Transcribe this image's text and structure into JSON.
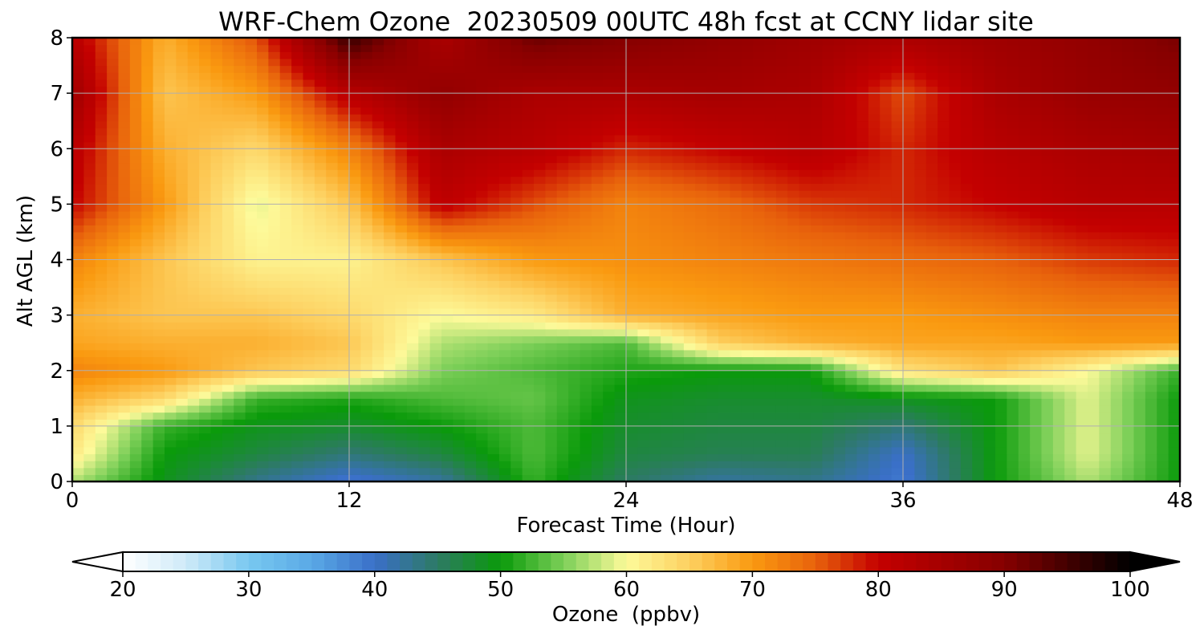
{
  "title": "WRF-Chem Ozone  20230509 00UTC 48h fcst at CCNY lidar site",
  "colors": {
    "stops": [
      [
        20,
        "#ffffff"
      ],
      [
        25,
        "#cfeaf8"
      ],
      [
        30,
        "#78c8f0"
      ],
      [
        35,
        "#5aa9e6"
      ],
      [
        40,
        "#3a6fc8"
      ],
      [
        45,
        "#2d7a64"
      ],
      [
        50,
        "#0a9a0a"
      ],
      [
        55,
        "#7ccf58"
      ],
      [
        60,
        "#fdfa9a"
      ],
      [
        65,
        "#fdd060"
      ],
      [
        70,
        "#fa9a10"
      ],
      [
        75,
        "#e8620c"
      ],
      [
        80,
        "#c40000"
      ],
      [
        90,
        "#860000"
      ],
      [
        100,
        "#000000"
      ]
    ]
  },
  "chart_data": {
    "type": "heatmap",
    "title": "WRF-Chem Ozone  20230509 00UTC 48h fcst at CCNY lidar site",
    "xlabel": "Forecast Time (Hour)",
    "ylabel": "Alt AGL (km)",
    "xlim": [
      0,
      48
    ],
    "ylim": [
      0,
      8
    ],
    "xticks": [
      0,
      12,
      24,
      36,
      48
    ],
    "yticks": [
      0,
      1,
      2,
      3,
      4,
      5,
      6,
      7,
      8
    ],
    "grid": true,
    "x": [
      0,
      4,
      8,
      12,
      16,
      20,
      24,
      28,
      32,
      36,
      40,
      44,
      48
    ],
    "y": [
      0,
      0.5,
      1,
      1.5,
      2,
      2.5,
      3,
      4,
      5,
      6,
      7,
      8
    ],
    "values": [
      [
        57,
        49,
        43,
        39,
        42,
        52,
        45,
        42,
        43,
        39,
        50,
        57,
        50
      ],
      [
        62,
        50,
        47,
        44,
        47,
        53,
        47,
        46,
        46,
        40,
        50,
        59,
        50
      ],
      [
        64,
        52,
        49,
        48,
        50,
        53,
        48,
        47,
        47,
        44,
        50,
        59,
        50
      ],
      [
        68,
        64,
        52,
        51,
        53,
        54,
        49,
        48,
        48,
        49,
        50,
        59,
        50
      ],
      [
        72,
        70,
        66,
        64,
        55,
        53,
        51,
        50,
        50,
        63,
        66,
        60,
        52
      ],
      [
        69,
        68,
        68,
        66,
        57,
        55,
        53,
        65,
        68,
        69,
        69,
        70,
        70
      ],
      [
        68,
        66,
        66,
        64,
        60,
        62,
        68,
        69,
        70,
        70,
        71,
        72,
        72
      ],
      [
        72,
        66,
        61,
        61,
        66,
        70,
        71,
        72,
        73,
        74,
        75,
        77,
        78
      ],
      [
        80,
        70,
        59,
        66,
        81,
        76,
        72,
        74,
        77,
        78,
        80,
        82,
        82
      ],
      [
        82,
        68,
        64,
        72,
        84,
        82,
        78,
        80,
        82,
        78,
        82,
        84,
        85
      ],
      [
        86,
        66,
        70,
        82,
        88,
        84,
        84,
        85,
        84,
        76,
        84,
        87,
        88
      ],
      [
        82,
        68,
        76,
        96,
        84,
        92,
        90,
        88,
        86,
        84,
        86,
        88,
        91
      ]
    ],
    "colorbar": {
      "label": "Ozone  (ppbv)",
      "min": 20,
      "max": 100,
      "step": 1,
      "ticks": [
        20,
        30,
        40,
        50,
        60,
        70,
        80,
        90,
        100
      ],
      "extend": "both"
    }
  }
}
